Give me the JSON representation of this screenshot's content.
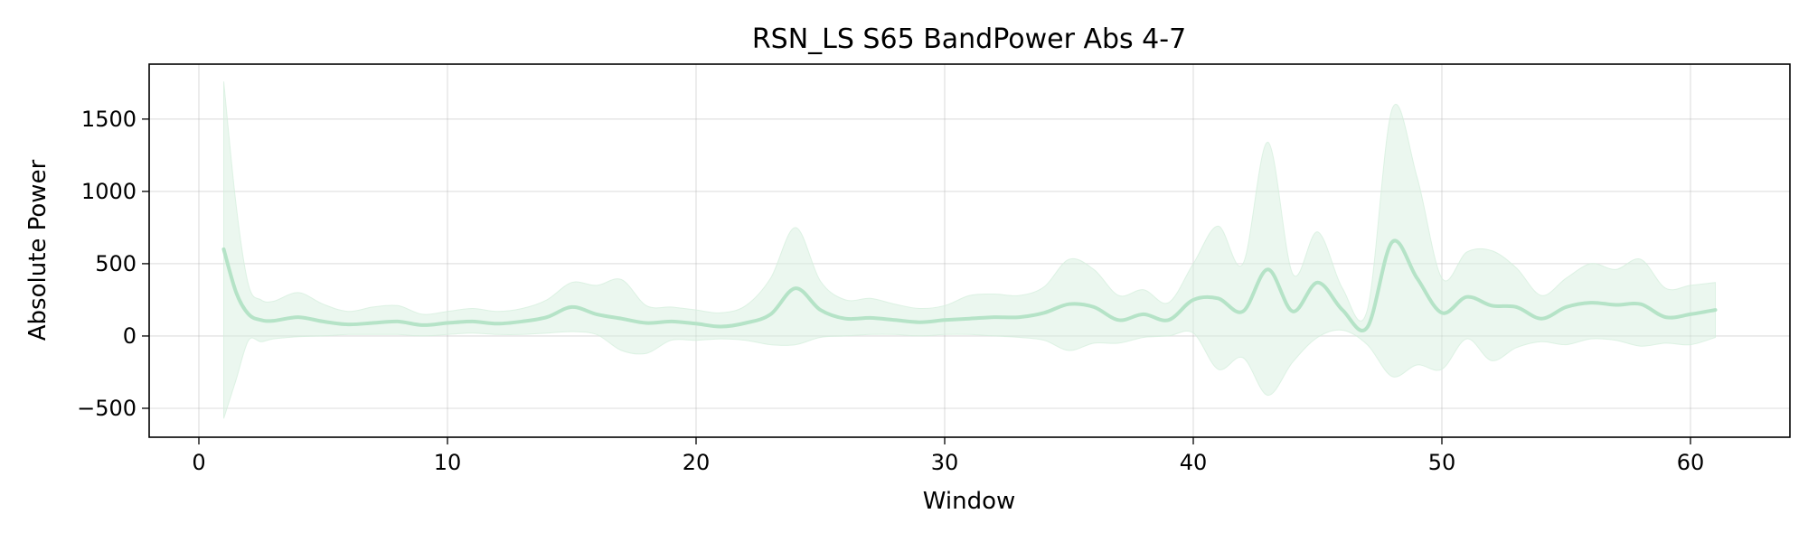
{
  "chart_data": {
    "type": "line",
    "title": "RSN_LS S65 BandPower Abs 4-7",
    "xlabel": "Window",
    "ylabel": "Absolute Power",
    "xlim": [
      -2,
      64
    ],
    "ylim": [
      -700,
      1880
    ],
    "xticks": [
      0,
      10,
      20,
      30,
      40,
      50,
      60
    ],
    "yticks": [
      -500,
      0,
      500,
      1000,
      1500
    ],
    "xtick_labels": [
      "0",
      "10",
      "20",
      "30",
      "40",
      "50",
      "60"
    ],
    "ytick_labels": [
      "−500",
      "0",
      "500",
      "1000",
      "1500"
    ],
    "grid": true,
    "colors": {
      "line": "#b5e3c7",
      "band": "#d3eedc"
    },
    "series": [
      {
        "x": [
          1,
          1.5,
          2,
          2.5,
          3,
          4,
          5,
          6,
          7,
          8,
          9,
          10,
          11,
          12,
          13,
          14,
          15,
          16,
          17,
          18,
          19,
          20,
          21,
          22,
          23,
          24,
          25,
          26,
          27,
          28,
          29,
          30,
          31,
          32,
          33,
          34,
          35,
          36,
          37,
          38,
          39,
          40,
          41,
          42,
          43,
          44,
          45,
          46,
          47,
          48,
          49,
          50,
          51,
          52,
          53,
          54,
          55,
          56,
          57,
          58,
          59,
          60,
          61
        ],
        "mean": [
          600,
          300,
          150,
          110,
          105,
          130,
          100,
          80,
          90,
          100,
          75,
          90,
          100,
          85,
          100,
          130,
          200,
          150,
          120,
          90,
          100,
          85,
          65,
          90,
          150,
          330,
          180,
          120,
          125,
          110,
          95,
          110,
          120,
          130,
          130,
          160,
          220,
          200,
          110,
          150,
          110,
          250,
          260,
          170,
          460,
          170,
          370,
          180,
          60,
          650,
          400,
          160,
          270,
          210,
          200,
          120,
          200,
          230,
          215,
          220,
          130,
          150,
          180
        ],
        "lower": [
          -570,
          -300,
          -30,
          -40,
          -20,
          -5,
          0,
          10,
          10,
          10,
          0,
          10,
          20,
          10,
          10,
          20,
          30,
          10,
          -100,
          -120,
          -30,
          -30,
          -20,
          -30,
          -60,
          -60,
          -10,
          0,
          10,
          10,
          0,
          10,
          10,
          0,
          -10,
          -30,
          -100,
          -50,
          -50,
          -10,
          0,
          20,
          -230,
          -150,
          -410,
          -180,
          -10,
          40,
          -60,
          -280,
          -200,
          -230,
          -20,
          -170,
          -80,
          -40,
          -60,
          -20,
          -30,
          -70,
          -50,
          -60,
          -10
        ],
        "upper": [
          1760,
          900,
          350,
          250,
          240,
          300,
          220,
          170,
          200,
          210,
          150,
          170,
          190,
          170,
          190,
          250,
          370,
          350,
          390,
          210,
          200,
          180,
          160,
          210,
          400,
          750,
          380,
          250,
          260,
          220,
          190,
          210,
          280,
          290,
          280,
          340,
          530,
          460,
          280,
          320,
          230,
          500,
          760,
          500,
          1340,
          430,
          720,
          330,
          180,
          1570,
          1100,
          400,
          580,
          590,
          470,
          280,
          400,
          500,
          460,
          530,
          330,
          350,
          370
        ]
      }
    ]
  }
}
